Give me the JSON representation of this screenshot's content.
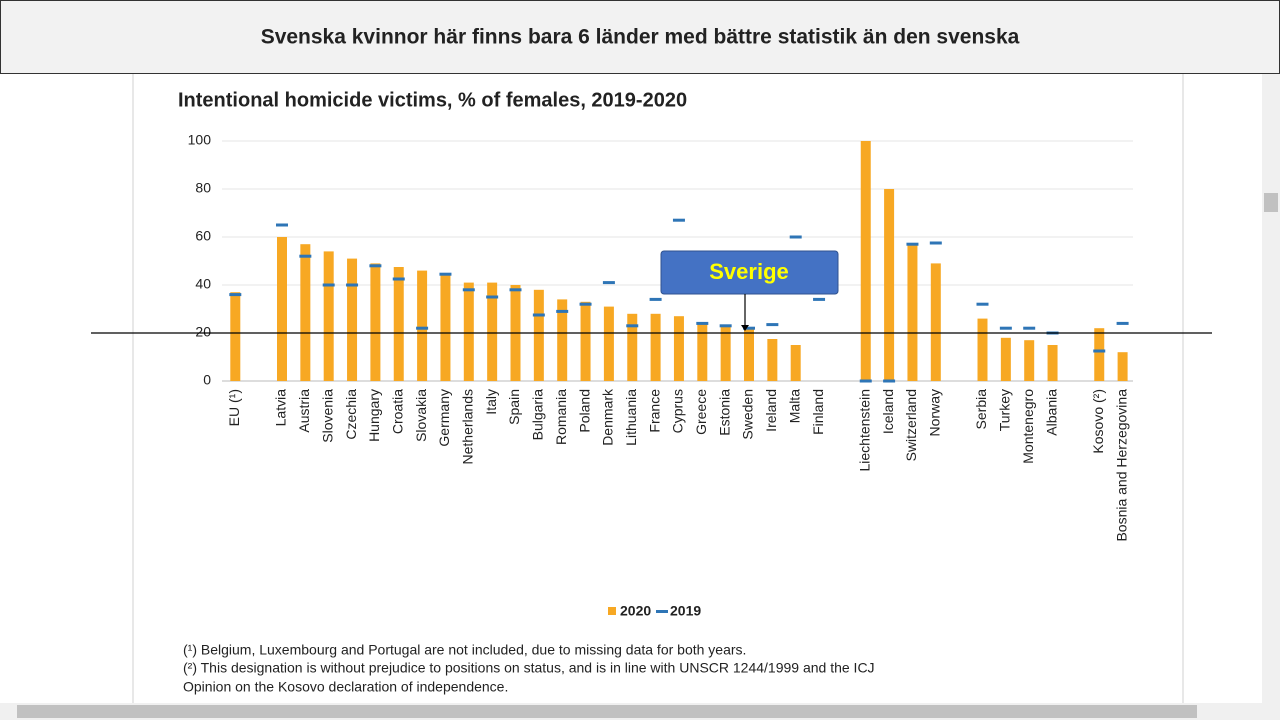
{
  "header": "Svenska kvinnor här finns bara 6 länder med bättre statistik än den svenska",
  "chart_data": {
    "type": "bar",
    "title": "Intentional homicide victims, % of females, 2019-2020",
    "categories": [
      "EU (¹)",
      null,
      "Latvia",
      "Austria",
      "Slovenia",
      "Czechia",
      "Hungary",
      "Croatia",
      "Slovakia",
      "Germany",
      "Netherlands",
      "Italy",
      "Spain",
      "Bulgaria",
      "Romania",
      "Poland",
      "Denmark",
      "Lithuania",
      "France",
      "Cyprus",
      "Greece",
      "Estonia",
      "Sweden",
      "Ireland",
      "Malta",
      "Finland",
      null,
      "Liechtenstein",
      "Iceland",
      "Switzerland",
      "Norway",
      null,
      "Serbia",
      "Turkey",
      "Montenegro",
      "Albania",
      null,
      "Kosovo (²)",
      "Bosnia and Herzegovina"
    ],
    "series": [
      {
        "name": "2020",
        "color": "#f7a823",
        "marker": "bar",
        "values": [
          37,
          null,
          60,
          57,
          54,
          51,
          49,
          47.5,
          46,
          45,
          41,
          41,
          40,
          38,
          34,
          33,
          31,
          28,
          28,
          27,
          24,
          23,
          22,
          17.5,
          15,
          null,
          null,
          100,
          80,
          57,
          49,
          null,
          26,
          18,
          17,
          15,
          null,
          22,
          12
        ]
      },
      {
        "name": "2019",
        "color": "#2e75b6",
        "marker": "dash",
        "values": [
          36,
          null,
          65,
          52,
          40,
          40,
          48,
          42.5,
          22,
          44.5,
          38,
          35,
          38,
          27.5,
          29,
          32,
          41,
          23,
          34,
          67,
          24,
          23,
          22,
          23.5,
          60,
          34,
          null,
          0,
          0,
          57,
          57.5,
          null,
          32,
          22,
          22,
          20,
          null,
          12.5,
          24
        ]
      }
    ],
    "ylim": [
      0,
      100
    ],
    "yticks": [
      0,
      20,
      40,
      60,
      80,
      100
    ],
    "grid": true,
    "legend": "bottom",
    "annotation": "Sverige",
    "reference_line": 20,
    "footnotes": [
      "(¹) Belgium, Luxembourg and Portugal are not included, due to missing data for both years.",
      "(²) This designation is without prejudice to positions on status, and is in line with UNSCR 1244/1999 and the ICJ",
      "Opinion on the Kosovo declaration of independence."
    ]
  }
}
